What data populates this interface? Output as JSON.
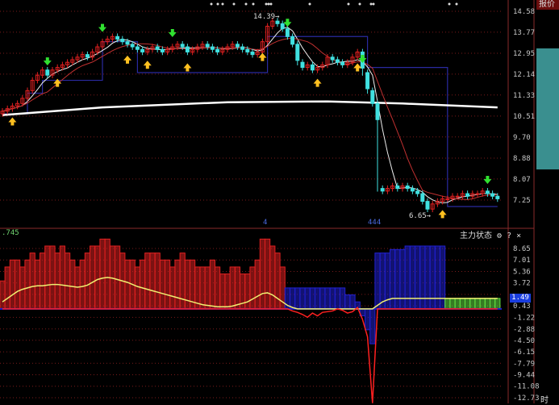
{
  "header": {
    "quote_tab": "报价",
    "indicator_name": "主力状态",
    "indicator_left_value": ".745",
    "time_label": "时",
    "gear_icon": "gear-icon",
    "help_label": "?",
    "close_label": "×"
  },
  "colors": {
    "up": "#e02020",
    "down": "#40e0e0",
    "ma_short": "#f0f0f0",
    "ma_mid": "#c03030",
    "ma_long": "#ffffff",
    "stop_line": "#2a2aa0",
    "grid": "#7a1a1a"
  },
  "chart_data": [
    {
      "type": "candlestick",
      "yaxis_ticks": [
        14.58,
        13.77,
        12.95,
        12.14,
        11.33,
        10.51,
        9.7,
        8.88,
        8.07,
        7.25
      ],
      "ylim": [
        6.4,
        14.7
      ],
      "annotations": {
        "high_label": "14.39",
        "low_label": "6.65",
        "marker_a": "4",
        "marker_b": "444"
      },
      "closes": [
        10.7,
        10.8,
        10.9,
        11.0,
        11.2,
        11.5,
        11.9,
        12.1,
        12.3,
        12.1,
        12.3,
        12.4,
        12.5,
        12.6,
        12.7,
        12.8,
        12.9,
        12.8,
        13.0,
        13.2,
        13.4,
        13.5,
        13.6,
        13.5,
        13.4,
        13.3,
        13.2,
        13.1,
        13.0,
        13.1,
        13.2,
        13.1,
        13.0,
        13.1,
        13.2,
        13.3,
        13.2,
        13.0,
        13.1,
        13.2,
        13.3,
        13.2,
        13.1,
        13.0,
        13.1,
        13.2,
        13.3,
        13.2,
        13.1,
        13.0,
        12.9,
        13.0,
        13.4,
        14.0,
        14.2,
        14.1,
        13.9,
        13.6,
        13.3,
        12.6,
        12.4,
        12.5,
        12.3,
        12.4,
        12.5,
        12.8,
        12.7,
        12.6,
        12.5,
        12.6,
        12.8,
        13.0,
        12.2,
        11.5,
        11.0,
        7.7,
        7.6,
        7.7,
        7.8,
        7.7,
        7.8,
        7.7,
        7.6,
        7.5,
        7.2,
        6.9,
        7.1,
        7.2,
        7.3,
        7.3,
        7.4,
        7.4,
        7.5,
        7.4,
        7.5,
        7.5,
        7.6,
        7.5,
        7.4,
        7.3
      ],
      "ma_long": [
        [
          0,
          10.55
        ],
        [
          20,
          10.85
        ],
        [
          45,
          11.05
        ],
        [
          65,
          11.08
        ],
        [
          80,
          11.0
        ],
        [
          99,
          10.85
        ]
      ],
      "stop_line": [
        [
          0,
          10.6
        ],
        [
          5,
          11.4
        ],
        [
          8,
          11.9
        ],
        [
          20,
          13.4
        ],
        [
          27,
          12.2
        ],
        [
          52,
          12.2
        ],
        [
          53,
          13.6
        ],
        [
          72,
          13.6
        ],
        [
          73,
          12.4
        ],
        [
          88,
          12.4
        ],
        [
          89,
          7.0
        ],
        [
          99,
          7.0
        ]
      ],
      "buy_signals": [
        2,
        11,
        25,
        29,
        37,
        52,
        63,
        71,
        88
      ],
      "sell_signals": [
        9,
        20,
        34,
        57,
        72,
        97
      ]
    },
    {
      "type": "bar",
      "yaxis_ticks": [
        8.65,
        7.01,
        5.36,
        3.72,
        2.07,
        0.43,
        -1.22,
        -2.88,
        -4.5,
        -6.15,
        -7.79,
        -9.44,
        -11.08,
        -12.73
      ],
      "ylim": [
        -12.73,
        9.2
      ],
      "current_value": "1.49",
      "histogram": [
        4,
        6,
        7,
        7,
        6,
        7,
        8,
        7,
        8,
        9,
        9,
        8,
        9,
        8,
        7,
        6,
        7,
        8,
        9,
        9,
        10,
        10,
        9,
        9,
        8,
        7,
        7,
        6,
        7,
        8,
        8,
        8,
        7,
        7,
        6,
        7,
        8,
        7,
        7,
        6,
        6,
        6,
        7,
        6,
        5,
        5,
        6,
        6,
        5,
        5,
        6,
        7,
        10,
        10,
        9,
        8,
        6,
        3,
        3,
        3,
        3,
        3,
        3,
        3,
        3,
        3,
        3,
        3,
        3,
        2,
        2,
        1,
        -1,
        -3,
        -5,
        8,
        8,
        8,
        8.5,
        8.5,
        8.5,
        9,
        9,
        9,
        9,
        9,
        9,
        9,
        9,
        1.5,
        1.5,
        1.5,
        1.5,
        1.5,
        1.5,
        1.5,
        1.5,
        1.5,
        1.5,
        1.5
      ],
      "color_ranges": [
        {
          "from": 0,
          "to": 56,
          "color": "#e02020"
        },
        {
          "from": 57,
          "to": 88,
          "color": "#2020d0"
        },
        {
          "from": 89,
          "to": 99,
          "color": "#60e040"
        }
      ],
      "yellow_line": [
        1,
        1.5,
        2,
        2.5,
        2.8,
        3,
        3.2,
        3.3,
        3.3,
        3.4,
        3.5,
        3.5,
        3.4,
        3.3,
        3.2,
        3.1,
        3.2,
        3.4,
        3.8,
        4.2,
        4.4,
        4.5,
        4.4,
        4.2,
        4,
        3.8,
        3.5,
        3.2,
        3,
        2.8,
        2.6,
        2.4,
        2.2,
        2,
        1.8,
        1.6,
        1.4,
        1.2,
        1.0,
        0.8,
        0.6,
        0.5,
        0.4,
        0.3,
        0.3,
        0.3,
        0.4,
        0.6,
        0.8,
        1.0,
        1.4,
        1.8,
        2.2,
        2.3,
        2,
        1.5,
        1,
        0.5,
        0.2,
        0,
        0,
        0,
        0,
        0,
        0,
        0,
        0,
        0,
        0,
        0,
        0,
        0,
        0,
        0,
        0,
        0.5,
        1,
        1.3,
        1.5,
        1.5,
        1.5,
        1.5,
        1.5,
        1.5,
        1.5,
        1.5,
        1.5,
        1.5,
        1.5,
        1.5,
        1.5,
        1.5,
        1.5,
        1.5,
        1.5,
        1.5,
        1.5,
        1.5,
        1.5,
        1.5
      ],
      "red_line": [
        0,
        0,
        0,
        0,
        0,
        0,
        0,
        0,
        0,
        0,
        0,
        0,
        0,
        0,
        0,
        0,
        0,
        0,
        0,
        0,
        0,
        0,
        0,
        0,
        0,
        0,
        0,
        0,
        0,
        0,
        0,
        0,
        0,
        0,
        0,
        0,
        0,
        0,
        0,
        0,
        0,
        0,
        0,
        0,
        0,
        0,
        0,
        0,
        0,
        0,
        0,
        0,
        0,
        0,
        0,
        0,
        0,
        0,
        -0.3,
        -0.5,
        -0.8,
        -1.2,
        -0.6,
        -1.0,
        -0.5,
        -0.4,
        -0.3,
        0,
        -0.2,
        -0.6,
        -0.4,
        0.2,
        -1.5,
        -4,
        -14,
        0,
        0,
        0,
        0,
        0,
        0,
        0,
        0,
        0,
        0,
        0,
        0,
        0,
        0,
        0,
        0,
        0,
        0,
        0,
        0,
        0,
        0,
        0,
        0,
        0
      ]
    }
  ]
}
